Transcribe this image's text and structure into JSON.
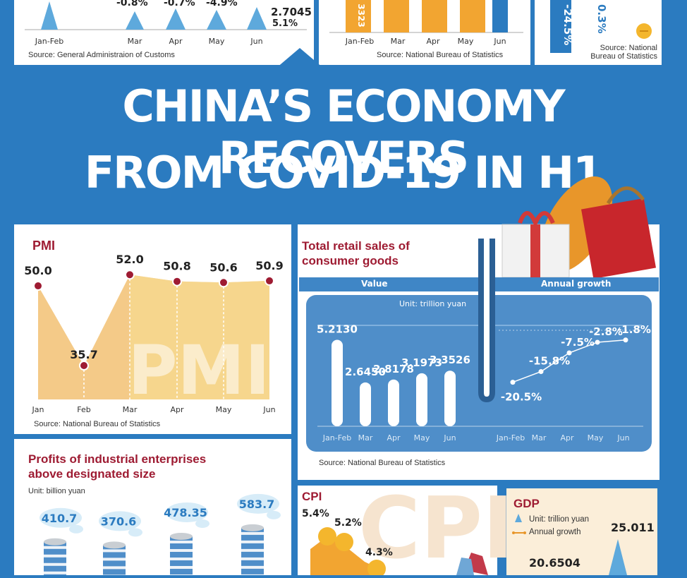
{
  "banner": {
    "line1": "CHINA’S ECONOMY RECOVERS",
    "line2": "FROM COVID-19 IN H1"
  },
  "top_trade": {
    "source": "Source: General Administraion of Customs",
    "months": [
      "Jan-Feb",
      "Mar",
      "Apr",
      "May",
      "Jun"
    ],
    "changes": [
      "-0.8%",
      "-0.7%",
      "-4.9%"
    ],
    "jun_value": "2.7045",
    "jun_change": "5.1%"
  },
  "top_nbs": {
    "source": "Source: National Bureau of Statistics",
    "months": [
      "Jan-Feb",
      "Mar",
      "Apr",
      "May",
      "Jun"
    ],
    "first_value": "3323"
  },
  "top_right": {
    "left_value": "-24.5%",
    "right_value": "0.3%",
    "source_line1": "Source: National",
    "source_line2": "Bureau of Statistics"
  },
  "pmi": {
    "title": "PMI",
    "watermark": "PMI",
    "source": "Source: National Bureau of Statistics",
    "chart_data": {
      "type": "area",
      "categories": [
        "Jan",
        "Feb",
        "Mar",
        "Apr",
        "May",
        "Jun"
      ],
      "values": [
        50.0,
        35.7,
        52.0,
        50.8,
        50.6,
        50.9
      ],
      "value_labels": [
        "50.0",
        "35.7",
        "52.0",
        "50.8",
        "50.6",
        "50.9"
      ],
      "title": "PMI"
    }
  },
  "retail": {
    "title_line1": "Total retail sales of",
    "title_line2": "consumer goods",
    "header_value": "Value",
    "header_growth": "Annual growth",
    "unit": "Unit: trillion yuan",
    "source": "Source: National Bureau of Statistics",
    "chart_data": [
      {
        "type": "bar",
        "categories": [
          "Jan-Feb",
          "Mar",
          "Apr",
          "May",
          "Jun"
        ],
        "values": [
          5.213,
          2.645,
          2.8178,
          3.1973,
          3.3526
        ],
        "value_labels": [
          "5.2130",
          "2.6450",
          "2.8178",
          "3.1973",
          "3.3526"
        ],
        "ylabel": "Unit: trillion yuan"
      },
      {
        "type": "line",
        "categories": [
          "Jan-Feb",
          "Mar",
          "Apr",
          "May",
          "Jun"
        ],
        "values": [
          -20.5,
          -15.8,
          -7.5,
          -2.8,
          -1.8
        ],
        "value_labels": [
          "-20.5%",
          "-15.8%",
          "-7.5%",
          "-2.8%",
          "-1.8%"
        ]
      }
    ]
  },
  "profits": {
    "title_line1": "Profits of industrial enterprises",
    "title_line2": "above designated size",
    "unit": "Unit: billion yuan",
    "chart_data": {
      "type": "bar",
      "values": [
        410.7,
        370.6,
        478.35,
        583.7
      ],
      "value_labels": [
        "410.7",
        "370.6",
        "478.35",
        "583.7"
      ],
      "ylabel": "Unit: billion yuan"
    }
  },
  "cpi": {
    "title": "CPI",
    "watermark": "CPI",
    "chart_data": {
      "type": "line",
      "values": [
        5.4,
        5.2,
        4.3
      ],
      "value_labels": [
        "5.4%",
        "5.2%",
        "4.3%"
      ]
    }
  },
  "gdp": {
    "title": "GDP",
    "legend_value": "Unit: trillion yuan",
    "legend_growth": "Annual growth",
    "chart_data": {
      "type": "bar",
      "values": [
        20.6504,
        25.011
      ],
      "value_labels": [
        "20.6504",
        "25.011"
      ]
    }
  },
  "colors": {
    "blue": "#2b7bc0",
    "red": "#9e1b32",
    "orange": "#f2a531",
    "pmi_fill": "#f3c47b",
    "basket": "#4f8ec9"
  }
}
